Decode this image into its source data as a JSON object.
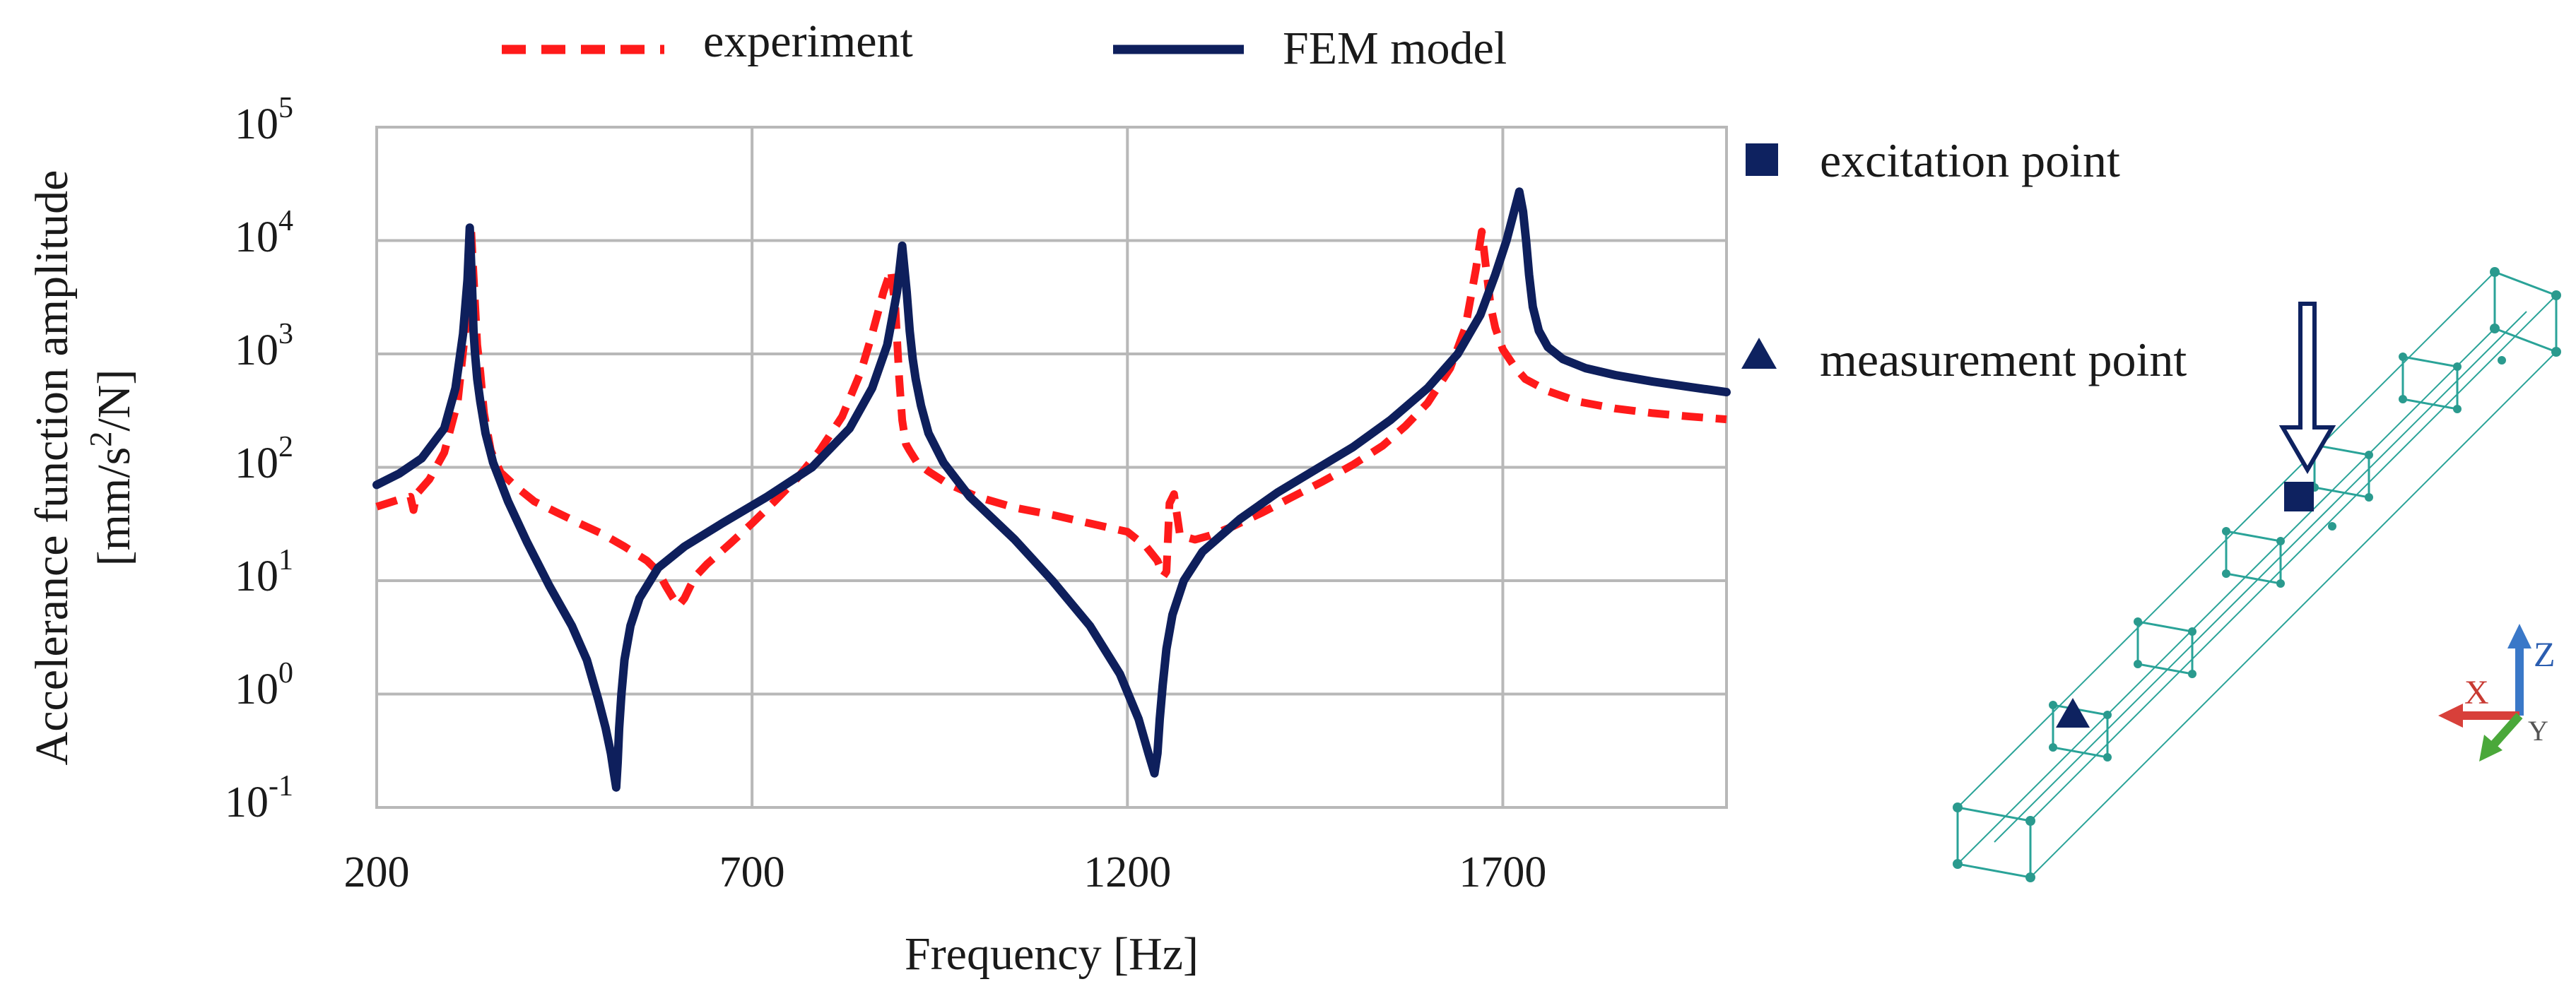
{
  "chart_data": {
    "type": "line",
    "title": "",
    "xlabel": "Frequency [Hz]",
    "ylabel_line1": "Accelerance function amplitude",
    "ylabel_unit": {
      "open": "[mm/s",
      "sup": "2",
      "close": "/N]"
    },
    "xlim": [
      200,
      1998
    ],
    "xticks": [
      200,
      700,
      1200,
      1700
    ],
    "xtick_labels": [
      "200",
      "700",
      "1200",
      "1700"
    ],
    "yscale": "log",
    "ylim_exp": [
      -1,
      5
    ],
    "yticks": [
      {
        "base": "10",
        "exp": "5"
      },
      {
        "base": "10",
        "exp": "4"
      },
      {
        "base": "10",
        "exp": "3"
      },
      {
        "base": "10",
        "exp": "2"
      },
      {
        "base": "10",
        "exp": "1"
      },
      {
        "base": "10",
        "exp": "0"
      },
      {
        "base": "10",
        "exp": "-1"
      }
    ],
    "grid": true,
    "legend_position": "top",
    "series": [
      {
        "name": "experiment",
        "color": "#ff1a1a",
        "style": "dashed",
        "x": [
          200,
          230,
          245,
          249,
          253,
          270,
          290,
          308,
          318,
          326,
          334,
          338,
          343,
          352,
          365,
          385,
          410,
          440,
          470,
          500,
          530,
          560,
          575,
          585,
          595,
          602,
          610,
          618,
          625,
          640,
          670,
          700,
          730,
          760,
          790,
          820,
          845,
          860,
          875,
          885,
          891,
          896,
          900,
          905,
          910,
          920,
          935,
          960,
          1000,
          1050,
          1100,
          1150,
          1200,
          1225,
          1240,
          1248,
          1252,
          1256,
          1262,
          1270,
          1290,
          1310,
          1340,
          1380,
          1420,
          1460,
          1500,
          1540,
          1570,
          1600,
          1630,
          1650,
          1664,
          1672,
          1678,
          1684,
          1690,
          1700,
          1715,
          1730,
          1760,
          1800,
          1850,
          1900,
          1950,
          1998
        ],
        "y": [
          45,
          52,
          55,
          42,
          58,
          78,
          135,
          380,
          1600,
          12000,
          1200,
          700,
          300,
          140,
          90,
          68,
          50,
          40,
          32,
          26,
          20,
          15,
          12,
          9,
          7,
          6,
          7,
          9,
          11,
          14,
          21,
          32,
          50,
          80,
          140,
          280,
          700,
          1500,
          3500,
          5500,
          2500,
          600,
          260,
          160,
          140,
          110,
          92,
          72,
          55,
          44,
          38,
          32,
          27,
          20,
          15,
          11,
          12,
          48,
          58,
          25,
          23,
          25,
          30,
          40,
          55,
          75,
          105,
          155,
          230,
          370,
          750,
          1700,
          5500,
          12000,
          5500,
          2600,
          1700,
          1100,
          780,
          600,
          470,
          380,
          330,
          300,
          280,
          265
        ]
      },
      {
        "name": "FEM model",
        "color": "#0e1f5c",
        "style": "solid",
        "x": [
          200,
          230,
          260,
          290,
          305,
          315,
          321,
          324,
          327,
          329,
          331,
          334,
          338,
          345,
          355,
          375,
          400,
          430,
          460,
          480,
          495,
          505,
          512,
          516,
          519,
          521,
          523,
          526,
          530,
          538,
          550,
          575,
          610,
          660,
          720,
          780,
          830,
          860,
          880,
          893,
          900,
          906,
          910,
          914,
          918,
          925,
          935,
          955,
          990,
          1050,
          1100,
          1150,
          1190,
          1215,
          1228,
          1236,
          1240,
          1243,
          1247,
          1252,
          1260,
          1275,
          1300,
          1350,
          1400,
          1450,
          1500,
          1550,
          1600,
          1640,
          1670,
          1690,
          1705,
          1715,
          1722,
          1727,
          1731,
          1735,
          1740,
          1748,
          1760,
          1780,
          1810,
          1850,
          1900,
          1950,
          1998
        ],
        "y": [
          70,
          88,
          120,
          220,
          500,
          1500,
          4500,
          13000,
          4000,
          1600,
          1000,
          600,
          380,
          200,
          110,
          50,
          22,
          9,
          4,
          2,
          0.9,
          0.5,
          0.3,
          0.2,
          0.15,
          0.25,
          0.5,
          1,
          2,
          4,
          7,
          13,
          20,
          32,
          55,
          100,
          220,
          500,
          1200,
          3500,
          9000,
          3500,
          1600,
          900,
          600,
          350,
          200,
          110,
          55,
          23,
          10,
          4,
          1.5,
          0.6,
          0.3,
          0.2,
          0.3,
          0.6,
          1.2,
          2.5,
          5,
          10,
          18,
          35,
          60,
          95,
          150,
          260,
          500,
          1000,
          2200,
          5000,
          10000,
          18000,
          27000,
          18000,
          10000,
          5000,
          2600,
          1600,
          1150,
          900,
          750,
          650,
          570,
          510,
          460
        ]
      }
    ]
  },
  "model_key": {
    "excitation_label": "excitation point",
    "measurement_label": "measurement point",
    "marker_color": "#0e2260",
    "mesh_color": "#2aa398",
    "triad": {
      "z": "Z",
      "x": "X",
      "y": "Y"
    }
  }
}
